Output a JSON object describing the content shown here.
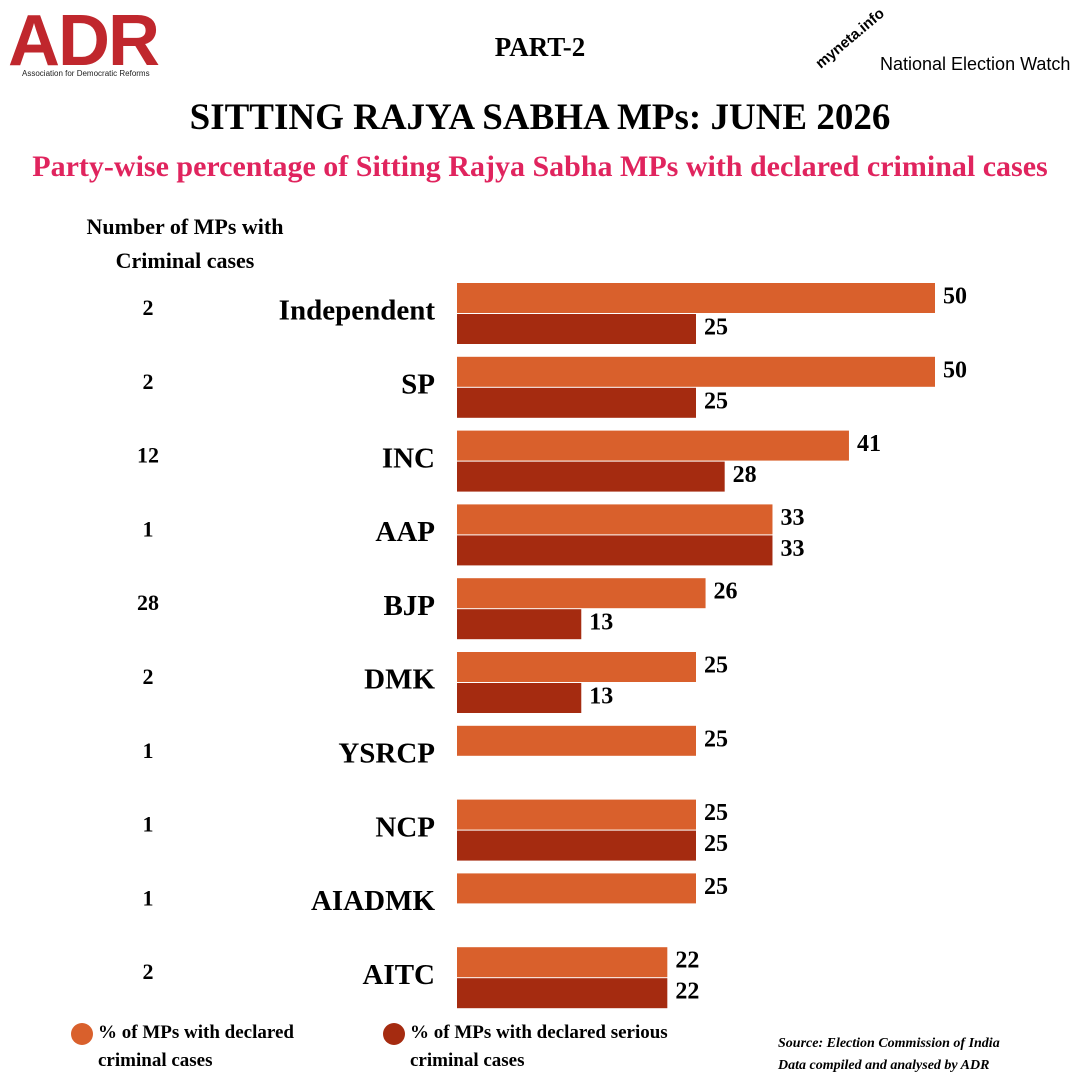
{
  "header": {
    "adr_logo": "ADR",
    "adr_name": "Association for Democratic Reforms",
    "part": "PART-2",
    "myneta": "myneta.info",
    "new_logo": "National Election Watch"
  },
  "chart_data": {
    "type": "bar",
    "orientation": "horizontal",
    "title": "SITTING RAJYA SABHA MPs: JUNE 2026",
    "subtitle": "Party-wise percentage of Sitting Rajya Sabha MPs with declared criminal cases",
    "count_header": [
      "Number of MPs with",
      "Criminal cases"
    ],
    "categories": [
      "Independent",
      "SP",
      "INC",
      "AAP",
      "BJP",
      "DMK",
      "YSRCP",
      "NCP",
      "AIADMK",
      "AITC"
    ],
    "counts": [
      2,
      2,
      12,
      1,
      28,
      2,
      1,
      1,
      1,
      2
    ],
    "series": [
      {
        "name": "% of MPs with declared criminal cases",
        "color": "#d9602c",
        "values": [
          50,
          50,
          41,
          33,
          26,
          25,
          25,
          25,
          25,
          22
        ]
      },
      {
        "name": "% of MPs with declared serious criminal cases",
        "color": "#a52b10",
        "values": [
          25,
          25,
          28,
          33,
          13,
          13,
          null,
          25,
          null,
          22
        ]
      }
    ],
    "xlim": [
      0,
      50
    ],
    "source": [
      "Source: Election Commission of India",
      "Data compiled and analysed by ADR"
    ]
  }
}
